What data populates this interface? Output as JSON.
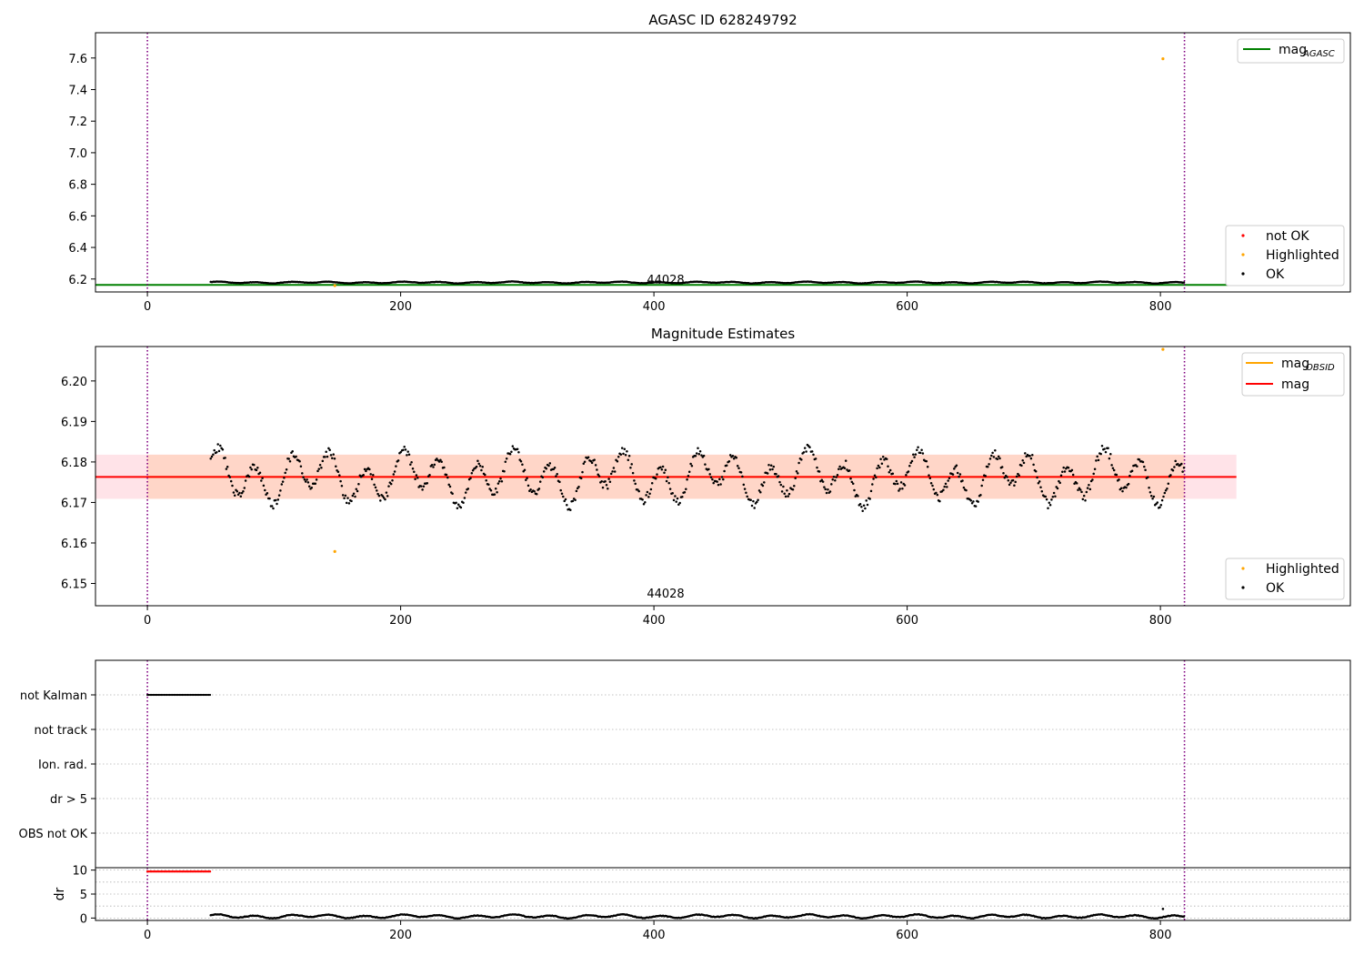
{
  "figure": {
    "background": "#ffffff"
  },
  "colors": {
    "ok": "#000000",
    "highlighted": "#ffa500",
    "not_ok": "#ff0000",
    "agasc_line": "#008000",
    "mag_line": "#ff0000",
    "obsid_line": "#ffa500",
    "band_fill": "#ffc0cb",
    "band_fill_inner": "#ffd2bf",
    "vline": "#800080",
    "grid": "#b0b0b0"
  },
  "chart_data": [
    {
      "type": "scatter",
      "title": "AGASC ID 628249792",
      "xlim": [
        -41,
        950
      ],
      "ylim": [
        6.118,
        7.76
      ],
      "xticks": [
        "0",
        "200",
        "400",
        "600",
        "800"
      ],
      "xtick_values": [
        0,
        200,
        400,
        600,
        800
      ],
      "yticks": [
        "6.2",
        "6.4",
        "6.6",
        "6.8",
        "7.0",
        "7.2",
        "7.4",
        "7.6"
      ],
      "ytick_values": [
        6.2,
        6.4,
        6.6,
        6.8,
        7.0,
        7.2,
        7.4,
        7.6
      ],
      "vlines": [
        0,
        819
      ],
      "obsid_label": "44028",
      "obsid_label_x": 409,
      "hline": {
        "name": "mag_AGASC",
        "value": 6.163,
        "x_range": [
          -41,
          860
        ]
      },
      "ok_series": {
        "name": "OK",
        "x_range": [
          50,
          819
        ],
        "base": 6.178,
        "amplitude": 0.005
      },
      "highlighted": {
        "name": "Highlighted",
        "points": [
          [
            802,
            7.595
          ],
          [
            148,
            6.158
          ]
        ]
      },
      "legend_top": {
        "entries": [
          {
            "label": "mag",
            "sub": "AGASC",
            "kind": "line",
            "color": "#008000"
          }
        ],
        "placement": "upper right"
      },
      "legend_bottom": {
        "entries": [
          {
            "label": "not OK",
            "kind": "dot",
            "color": "#ff0000"
          },
          {
            "label": "Highlighted",
            "kind": "dot",
            "color": "#ffa500"
          },
          {
            "label": "OK",
            "kind": "dot",
            "color": "#000000"
          }
        ],
        "placement": "lower right"
      }
    },
    {
      "type": "scatter",
      "title": "Magnitude Estimates",
      "xlim": [
        -41,
        950
      ],
      "ylim": [
        6.1445,
        6.2085
      ],
      "xticks": [
        "0",
        "200",
        "400",
        "600",
        "800"
      ],
      "xtick_values": [
        0,
        200,
        400,
        600,
        800
      ],
      "yticks": [
        "6.15",
        "6.16",
        "6.17",
        "6.18",
        "6.19",
        "6.20"
      ],
      "ytick_values": [
        6.15,
        6.16,
        6.17,
        6.18,
        6.19,
        6.2
      ],
      "vlines": [
        0,
        819
      ],
      "obsid_label": "44028",
      "obsid_label_x": 409,
      "mag": {
        "name": "mag",
        "value": 6.1763,
        "x_range": [
          -41,
          860
        ]
      },
      "band": {
        "low": 6.1709,
        "high": 6.1818,
        "x_range": [
          -41,
          860
        ]
      },
      "band_obsid": {
        "low": 6.1709,
        "high": 6.1818,
        "x_range": [
          0,
          819
        ]
      },
      "obsid_mag": {
        "name": "mag_OBSID",
        "value": 6.1763,
        "x_range": [
          0,
          819
        ]
      },
      "ok_series": {
        "name": "OK",
        "x_range": [
          50,
          819
        ],
        "base": 6.1763,
        "amplitude": 0.0062
      },
      "highlighted": {
        "name": "Highlighted",
        "points": [
          [
            802,
            6.2078
          ],
          [
            148,
            6.1579
          ]
        ]
      },
      "legend_top": {
        "entries": [
          {
            "label": "mag",
            "sub": "OBSID",
            "kind": "line",
            "color": "#ffa500"
          },
          {
            "label": "mag",
            "kind": "line",
            "color": "#ff0000"
          }
        ],
        "placement": "upper right"
      },
      "legend_bottom": {
        "entries": [
          {
            "label": "Highlighted",
            "kind": "dot",
            "color": "#ffa500"
          },
          {
            "label": "OK",
            "kind": "dot",
            "color": "#000000"
          }
        ],
        "placement": "lower right"
      }
    },
    {
      "type": "scatter",
      "title": "",
      "xlim": [
        -41,
        950
      ],
      "categories": [
        "not Kalman",
        "not track",
        "Ion. rad.",
        "dr > 5",
        "OBS not OK"
      ],
      "vlines": [
        0,
        819
      ],
      "flags": {
        "category": "not Kalman",
        "x_range": [
          0,
          50
        ]
      }
    },
    {
      "type": "scatter",
      "title": "",
      "ylabel": "dr",
      "xlim": [
        -41,
        950
      ],
      "ylim": [
        -0.5,
        10.5
      ],
      "xticks": [
        "0",
        "200",
        "400",
        "600",
        "800"
      ],
      "xtick_values": [
        0,
        200,
        400,
        600,
        800
      ],
      "yticks": [
        "0",
        "5",
        "10"
      ],
      "ytick_values": [
        0,
        5,
        10
      ],
      "vlines": [
        0,
        819
      ],
      "not_ok_series": {
        "name": "not OK",
        "x_range": [
          0,
          50
        ],
        "value": 9.7
      },
      "ok_series": {
        "name": "OK",
        "x_range": [
          50,
          819
        ],
        "base": 0.35,
        "amplitude": 0.35
      },
      "highlighted": {
        "name": "Highlighted",
        "points": [
          [
            802,
            1.9
          ]
        ]
      }
    }
  ]
}
